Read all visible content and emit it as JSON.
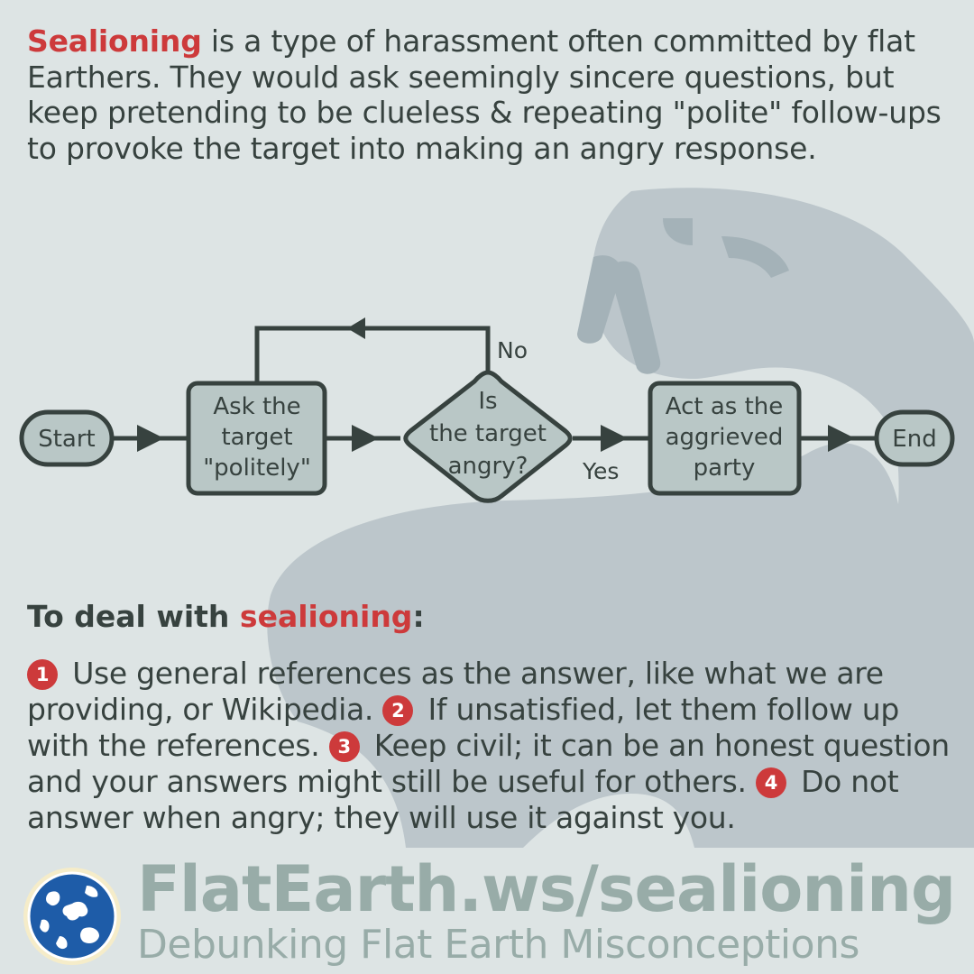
{
  "intro": {
    "highlight": "Sealioning",
    "text": " is a type of harassment often committed by flat Earthers. They would ask seemingly sincere questions, but keep pretending to be clueless & repeating \"polite\" follow-ups to provoke the target into making an angry response."
  },
  "flowchart": {
    "start": "Start",
    "ask": [
      "Ask the",
      "target",
      "\"politely\""
    ],
    "decision": [
      "Is",
      "the target",
      "angry?"
    ],
    "act": [
      "Act as the",
      "aggrieved",
      "party"
    ],
    "end": "End",
    "no_label": "No",
    "yes_label": "Yes"
  },
  "deal": {
    "prefix": "To deal with ",
    "highlight": "sealioning",
    "suffix": ":"
  },
  "tips": [
    {
      "num": "1",
      "text": " Use general references as the answer, like what we are providing, or Wikipedia. "
    },
    {
      "num": "2",
      "text": " If unsatisfied, let them follow up with the references. "
    },
    {
      "num": "3",
      "text": " Keep civil; it can be an honest question and your answers might still be useful for others. "
    },
    {
      "num": "4",
      "text": " Do not answer when angry; they will use it against you."
    }
  ],
  "footer": {
    "site": "FlatEarth.ws/sealioning",
    "tagline": "Debunking Flat Earth Misconceptions"
  },
  "colors": {
    "background": "#dde4e4",
    "accent": "#cd3a3b",
    "text": "#37423f",
    "node_fill": "#b9c7c6",
    "silhouette": "#bcc6cb",
    "footer": "#98aca8"
  }
}
